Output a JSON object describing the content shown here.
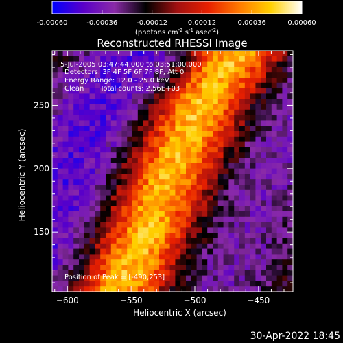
{
  "colorbar": {
    "ticks": [
      "-0.00060",
      "-0.00036",
      "-0.00012",
      "0.00012",
      "0.00036",
      "0.00060"
    ],
    "tick_values": [
      -0.0006,
      -0.00036,
      -0.00012,
      0.00012,
      0.00036,
      0.0006
    ],
    "range": [
      -0.0006,
      0.0006
    ],
    "units_text": "(photons cm",
    "units_exp1": "-2",
    "units_s": " s",
    "units_exp2": "-1",
    "units_asec": " asec",
    "units_exp3": "-2",
    "units_close": ")",
    "colormap": [
      "#0000ff",
      "#5a00c8",
      "#8a2aa8",
      "#000000",
      "#a01010",
      "#e82000",
      "#ff7a00",
      "#ffd000",
      "#ffffff"
    ]
  },
  "chart_data": {
    "type": "heatmap",
    "title": "Reconstructed RHESSI Image",
    "xlabel": "Heliocentric X (arcsec)",
    "ylabel": "Heliocentric Y (arcsec)",
    "xlim": [
      -612,
      -423
    ],
    "ylim": [
      103,
      293
    ],
    "xticks": [
      -600,
      -550,
      -500,
      -450
    ],
    "xtick_labels": [
      "−600",
      "−550",
      "−500",
      "−450"
    ],
    "yticks": [
      150,
      200,
      250
    ],
    "ytick_labels": [
      "150",
      "200",
      "250"
    ],
    "colorbar_range": [
      -0.0006,
      0.0006
    ],
    "emission_ridge": {
      "description_points": [
        [
          -560,
          105
        ],
        [
          -540,
          150
        ],
        [
          -520,
          200
        ],
        [
          -497,
          250
        ],
        [
          -470,
          290
        ]
      ],
      "peak": [
        -490,
        253
      ]
    },
    "annotations": {
      "time_range": "5-Jul-2005 03:47:44.000 to 03:51:00.000",
      "detectors": "Detectors: 3F 4F 5F 6F 7F 8F, Att 0",
      "energy": "Energy Range: 12.0 - 25.0 keV",
      "clean_label": "Clean",
      "total_counts": "Total counts: 2.56E+03",
      "peak_label": "Position of Peak = [-490,253]"
    }
  },
  "timestamp": "30-Apr-2022 18:45"
}
